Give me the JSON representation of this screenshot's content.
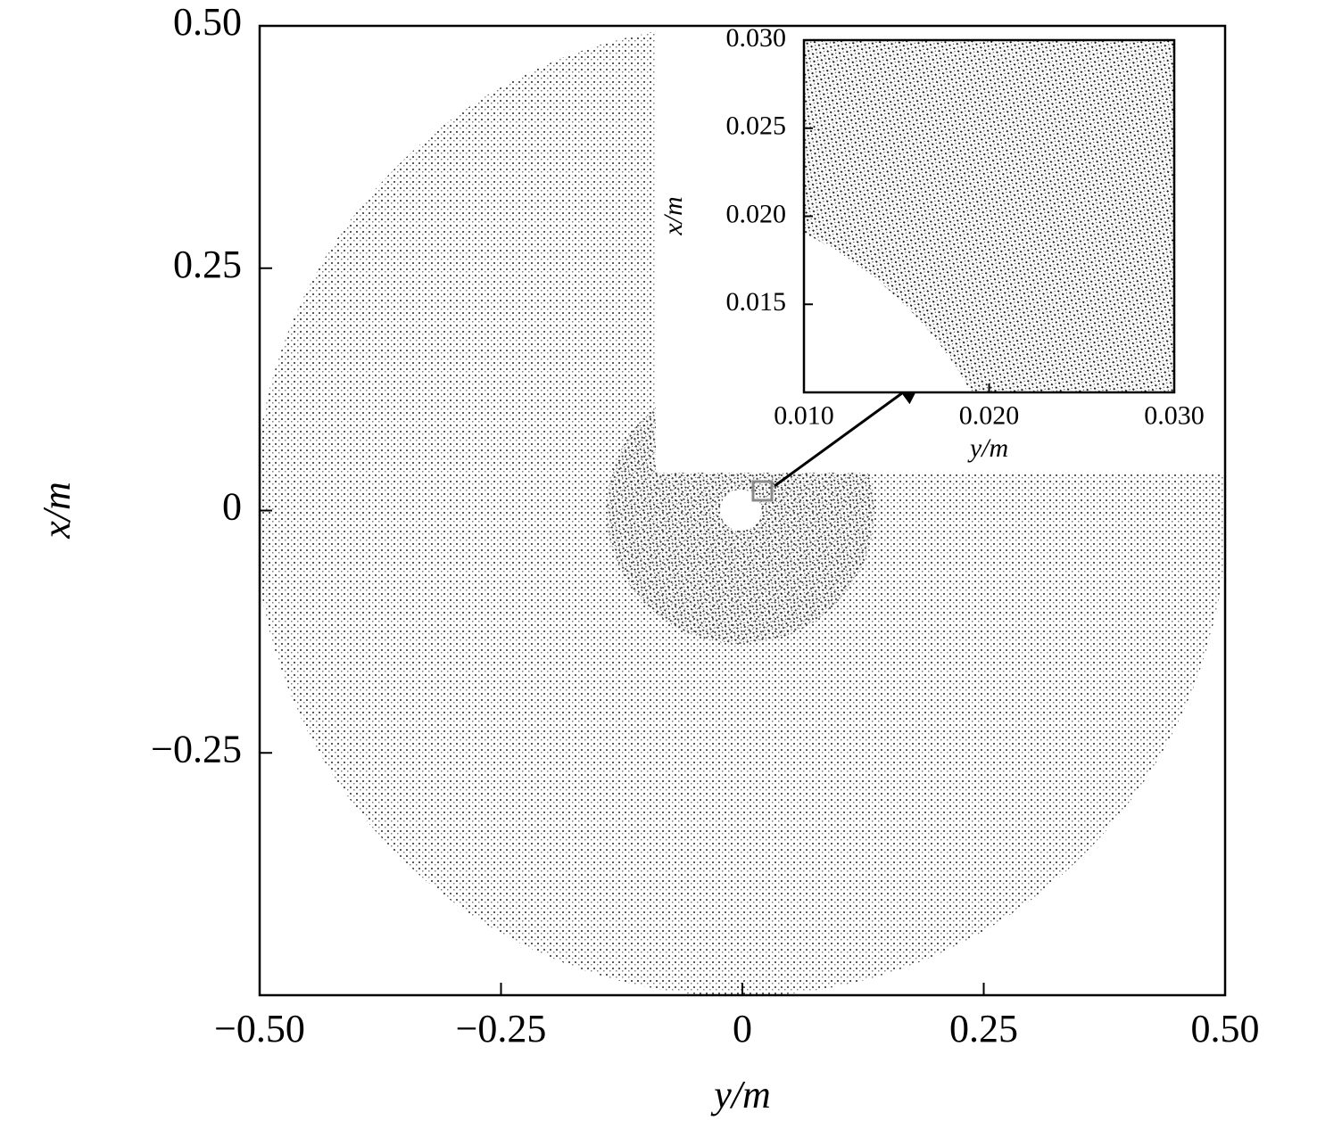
{
  "chart_data": [
    {
      "type": "mesh",
      "xlabel": "y/m",
      "ylabel": "x/m",
      "xlim": [
        -0.5,
        0.5
      ],
      "xticks": [
        {
          "value": -0.5,
          "label": "−0.50"
        },
        {
          "value": -0.25,
          "label": "−0.25"
        },
        0,
        0.25,
        {
          "value": 0.5,
          "label": "0.50"
        }
      ],
      "ylim": [
        -0.5,
        0.5
      ],
      "yticks": [
        {
          "value": -0.25,
          "label": "−0.25"
        },
        0,
        0.25,
        {
          "value": 0.5,
          "label": "0.50"
        }
      ]
    },
    {
      "type": "mesh",
      "xlabel": "y/m",
      "ylabel": "x/m",
      "xlim": [
        0.01,
        0.03
      ],
      "xticks": [
        {
          "value": 0.01,
          "label": "0.010"
        },
        {
          "value": 0.02,
          "label": "0.020"
        },
        {
          "value": 0.03,
          "label": "0.030"
        }
      ],
      "ylim": [
        0.01,
        0.03
      ],
      "yticks": [
        {
          "value": 0.015,
          "label": "0.015"
        },
        {
          "value": 0.02,
          "label": "0.020"
        },
        {
          "value": 0.025,
          "label": "0.025"
        },
        {
          "value": 0.03,
          "label": "0.030"
        }
      ]
    }
  ]
}
